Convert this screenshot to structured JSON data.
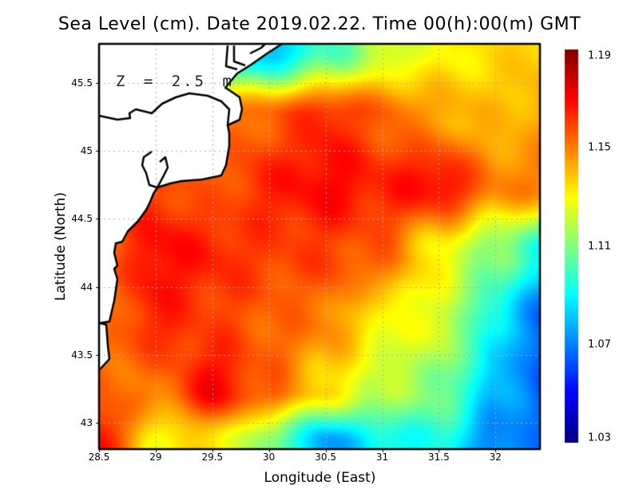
{
  "title": "Sea Level (cm). Date 2019.02.22. Time 00(h):00(m) GMT",
  "annotation": "Z = 2.5 m",
  "chart_data": {
    "type": "heatmap",
    "title": "Sea Level (cm). Date 2019.02.22. Time 00(h):00(m) GMT",
    "xlabel": "Longitude (East)",
    "ylabel": "Latitude (North)",
    "xlim": [
      28.5,
      32.4
    ],
    "ylim": [
      42.8,
      45.8
    ],
    "xticks": [
      "28.5",
      "29",
      "29.5",
      "30",
      "30.5",
      "31",
      "31.5",
      "32"
    ],
    "yticks": [
      "45.5",
      "45",
      "44.5",
      "44",
      "43.5",
      "43"
    ],
    "grid": true,
    "colorbar": {
      "range": [
        1.03,
        1.19
      ],
      "ticks": [
        "1.19",
        "1.15",
        "1.11",
        "1.07",
        "1.03"
      ],
      "colormap": "jet",
      "placement": "right"
    },
    "land_color": "#ffffff",
    "coastline_color": "#000000",
    "grid_lon": [
      28.5,
      29,
      29.5,
      30,
      30.5,
      31,
      31.5,
      32,
      32.5
    ],
    "grid_lat": [
      45.75,
      45.25,
      44.75,
      44.25,
      43.75,
      43.25,
      42.85
    ],
    "values": [
      [
        1.15,
        1.15,
        1.08,
        1.08,
        1.1,
        1.12,
        1.13,
        1.135,
        1.14
      ],
      [
        1.16,
        1.16,
        1.15,
        1.155,
        1.165,
        1.155,
        1.145,
        1.14,
        1.145
      ],
      [
        1.16,
        1.16,
        1.155,
        1.165,
        1.17,
        1.165,
        1.17,
        1.15,
        1.15
      ],
      [
        1.15,
        1.17,
        1.165,
        1.16,
        1.16,
        1.155,
        1.13,
        1.11,
        1.09
      ],
      [
        1.15,
        1.165,
        1.16,
        1.155,
        1.15,
        1.13,
        1.125,
        1.09,
        1.06
      ],
      [
        1.155,
        1.15,
        1.17,
        1.155,
        1.135,
        1.12,
        1.11,
        1.08,
        1.06
      ],
      [
        1.17,
        1.13,
        1.135,
        1.11,
        1.075,
        1.09,
        1.095,
        1.07,
        1.07
      ]
    ]
  }
}
